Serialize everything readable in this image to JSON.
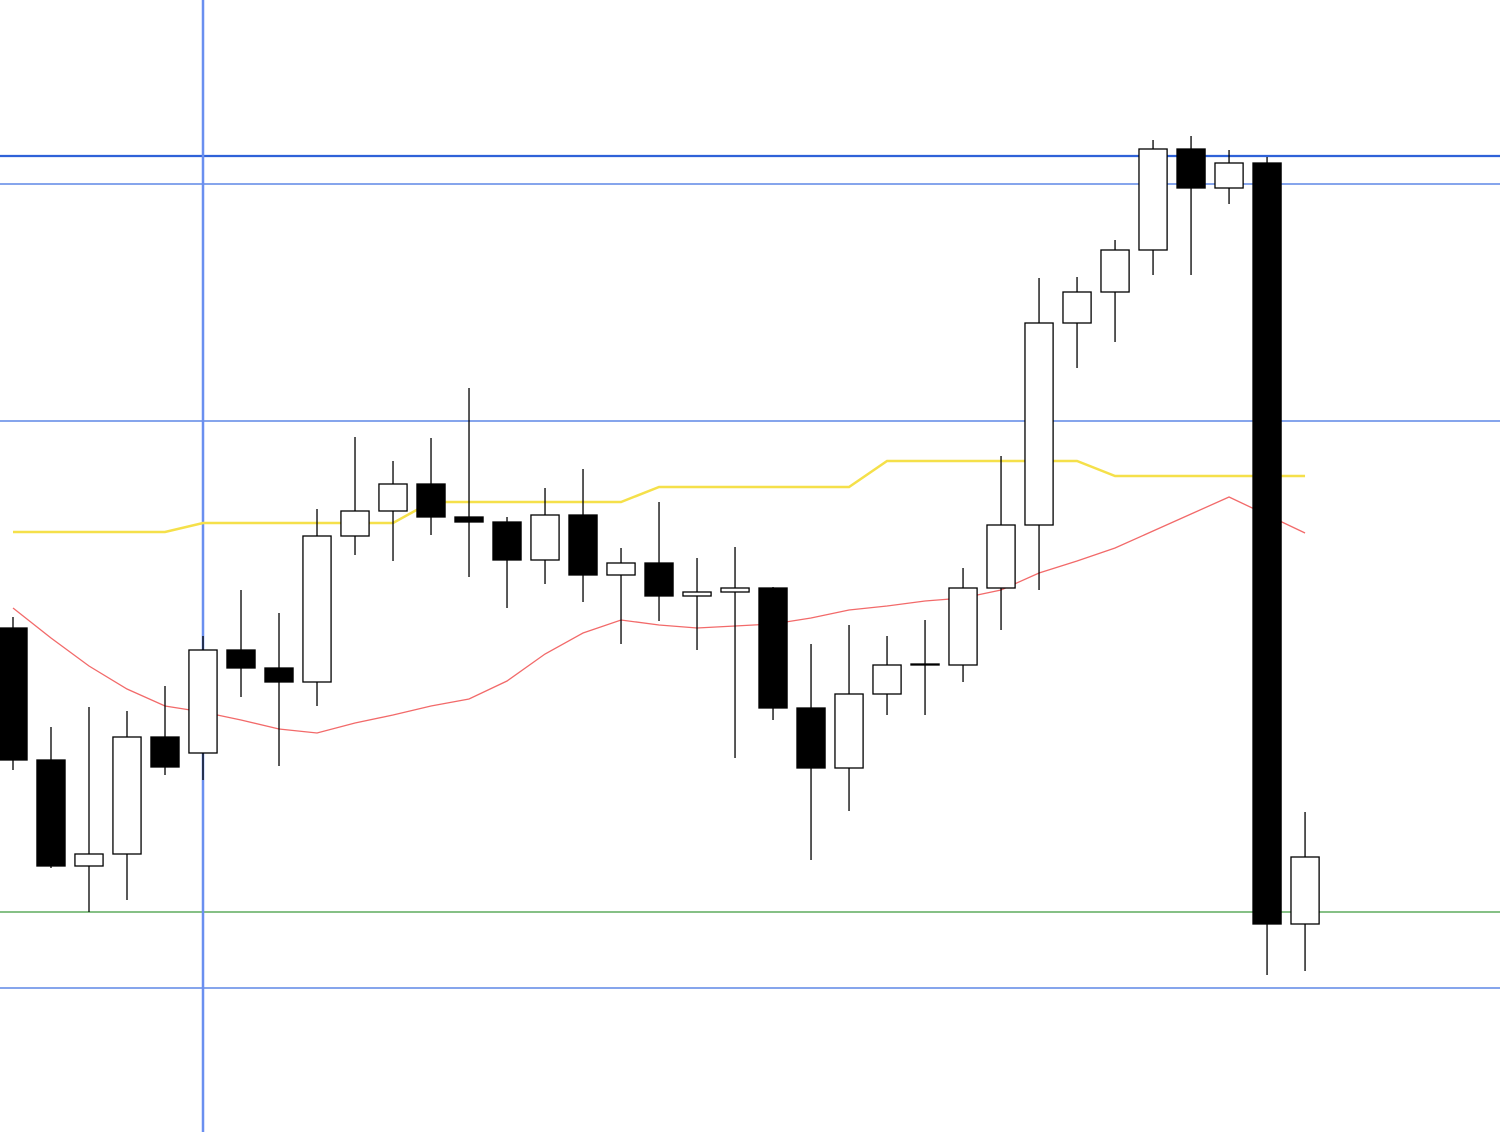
{
  "chart_data": {
    "type": "candlestick",
    "x": [
      0,
      1,
      2,
      3,
      4,
      5,
      6,
      7,
      8,
      9,
      10,
      11,
      12,
      13,
      14,
      15,
      16,
      17,
      18,
      19,
      20,
      21,
      22,
      23,
      24,
      25,
      26,
      27,
      28,
      29,
      30,
      31,
      32,
      33,
      34
    ],
    "open": [
      504,
      372,
      266,
      278,
      395,
      379,
      482,
      464,
      450,
      596,
      621,
      648,
      615,
      610,
      572,
      617,
      557,
      569,
      536,
      540,
      544,
      424,
      364,
      438,
      467,
      467,
      544,
      607,
      809,
      840,
      882,
      983,
      944,
      969,
      208
    ],
    "high": [
      515,
      405,
      425,
      421,
      446,
      496,
      542,
      519,
      623,
      695,
      671,
      694,
      744,
      615,
      644,
      663,
      584,
      630,
      574,
      585,
      545,
      488,
      507,
      496,
      512,
      564,
      676,
      854,
      855,
      892,
      992,
      996,
      982,
      975,
      320
    ],
    "low": [
      362,
      264,
      220,
      232,
      357,
      352,
      435,
      366,
      426,
      577,
      571,
      597,
      555,
      524,
      548,
      530,
      488,
      511,
      482,
      374,
      412,
      272,
      321,
      417,
      417,
      450,
      502,
      542,
      764,
      790,
      857,
      857,
      928,
      157,
      161
    ],
    "close": [
      372,
      266,
      278,
      395,
      365,
      482,
      464,
      450,
      596,
      621,
      648,
      615,
      610,
      572,
      617,
      557,
      569,
      536,
      540,
      544,
      424,
      364,
      438,
      467,
      468,
      544,
      607,
      809,
      840,
      882,
      983,
      944,
      969,
      208,
      275
    ],
    "up_color": "#ffffff",
    "down_color": "#000000",
    "series": [
      {
        "color": "#f5e04a",
        "values": [
          600,
          600,
          600,
          600,
          600,
          609,
          609,
          609,
          609,
          609,
          609,
          630,
          630,
          630,
          630,
          630,
          630,
          645,
          645,
          645,
          645,
          645,
          645,
          671,
          671,
          671,
          671,
          671,
          671,
          656,
          656,
          656,
          656,
          656,
          656
        ]
      },
      {
        "color": "#f26a6a",
        "values": [
          524,
          494,
          466,
          443,
          426,
          420,
          412,
          403,
          399,
          409,
          417,
          426,
          433,
          451,
          478,
          499,
          512,
          507,
          504,
          506,
          508,
          514,
          522,
          526,
          531,
          534,
          542,
          559,
          571,
          584,
          601,
          618,
          635,
          617,
          599
        ]
      }
    ],
    "hlines": [
      {
        "value": 976,
        "color": "#2f62d8"
      },
      {
        "value": 948,
        "color": "#3d6fe0"
      },
      {
        "value": 711,
        "color": "#3d6fe0"
      },
      {
        "value": 220,
        "color": "#3d9a3d"
      },
      {
        "value": 144,
        "color": "#3d6fe0"
      }
    ],
    "vline": {
      "x": 5,
      "color": "#6a8ff0"
    },
    "xlim": [
      -0.342,
      39.13
    ],
    "ylim": [
      0,
      1132
    ]
  }
}
